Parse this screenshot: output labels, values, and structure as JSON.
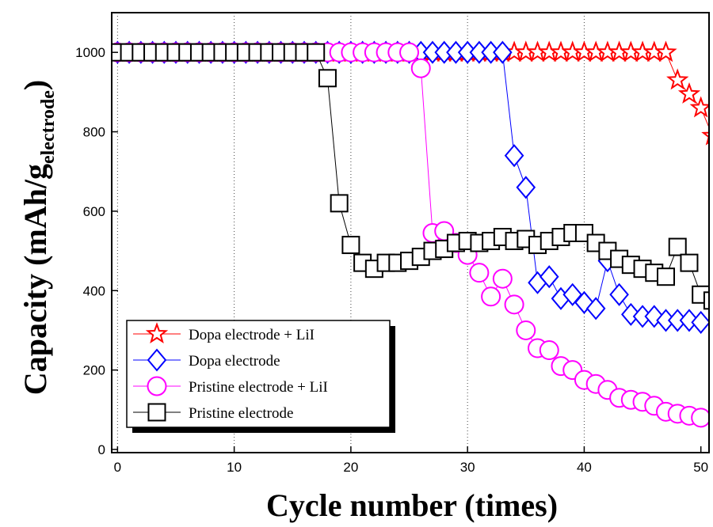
{
  "chart_data": {
    "type": "line",
    "x_label": "Cycle number (times)",
    "y_label": "Capacity (mAh/g",
    "y_label_sub": "electrode",
    "y_label_end": ")",
    "xlim": [
      -0.5,
      50.7
    ],
    "ylim": [
      -8,
      1100
    ],
    "xticks": [
      0,
      10,
      20,
      30,
      40,
      50
    ],
    "yticks": [
      0,
      200,
      400,
      600,
      800,
      1000
    ],
    "grid": "x",
    "legend": "lower left",
    "series": [
      {
        "name": "Dopa electrode + LiI",
        "color": "#ff0000",
        "marker": "star",
        "x": [
          0,
          1,
          2,
          3,
          4,
          5,
          6,
          7,
          8,
          9,
          10,
          11,
          12,
          13,
          14,
          15,
          16,
          17,
          18,
          19,
          20,
          21,
          22,
          23,
          24,
          25,
          26,
          27,
          28,
          29,
          30,
          31,
          32,
          33,
          34,
          35,
          36,
          37,
          38,
          39,
          40,
          41,
          42,
          43,
          44,
          45,
          46,
          47,
          48,
          49,
          50,
          51
        ],
        "values": [
          1000,
          1000,
          1000,
          1000,
          1000,
          1000,
          1000,
          1000,
          1000,
          1000,
          1000,
          1000,
          1000,
          1000,
          1000,
          1000,
          1000,
          1000,
          1000,
          1000,
          1000,
          1000,
          1000,
          1000,
          1000,
          1000,
          1000,
          1000,
          1000,
          1000,
          1000,
          1000,
          1000,
          1000,
          1000,
          1000,
          1000,
          1000,
          1000,
          1000,
          1000,
          1000,
          1000,
          1000,
          1000,
          1000,
          1000,
          1000,
          930,
          895,
          860,
          790
        ]
      },
      {
        "name": "Dopa electrode",
        "color": "#0000ff",
        "marker": "diamond",
        "x": [
          0,
          1,
          2,
          3,
          4,
          5,
          6,
          7,
          8,
          9,
          10,
          11,
          12,
          13,
          14,
          15,
          16,
          17,
          18,
          19,
          20,
          21,
          22,
          23,
          24,
          25,
          26,
          27,
          28,
          29,
          30,
          31,
          32,
          33,
          34,
          35,
          36,
          37,
          38,
          39,
          40,
          41,
          42,
          43,
          44,
          45,
          46,
          47,
          48,
          49,
          50
        ],
        "values": [
          1000,
          1000,
          1000,
          1000,
          1000,
          1000,
          1000,
          1000,
          1000,
          1000,
          1000,
          1000,
          1000,
          1000,
          1000,
          1000,
          1000,
          1000,
          1000,
          1000,
          1000,
          1000,
          1000,
          1000,
          1000,
          1000,
          1000,
          1000,
          1000,
          1000,
          1000,
          1000,
          1000,
          1000,
          740,
          660,
          420,
          435,
          380,
          390,
          370,
          355,
          475,
          390,
          340,
          335,
          335,
          325,
          325,
          325,
          320
        ]
      },
      {
        "name": "Pristine electrode + LiI",
        "color": "#ff00ff",
        "marker": "circle",
        "x": [
          0,
          1,
          2,
          3,
          4,
          5,
          6,
          7,
          8,
          9,
          10,
          11,
          12,
          13,
          14,
          15,
          16,
          17,
          18,
          19,
          20,
          21,
          22,
          23,
          24,
          25,
          26,
          27,
          28,
          29,
          30,
          31,
          32,
          33,
          34,
          35,
          36,
          37,
          38,
          39,
          40,
          41,
          42,
          43,
          44,
          45,
          46,
          47,
          48,
          49,
          50
        ],
        "values": [
          1000,
          1000,
          1000,
          1000,
          1000,
          1000,
          1000,
          1000,
          1000,
          1000,
          1000,
          1000,
          1000,
          1000,
          1000,
          1000,
          1000,
          1000,
          1000,
          1000,
          1000,
          1000,
          1000,
          1000,
          1000,
          1000,
          960,
          545,
          550,
          520,
          490,
          445,
          385,
          430,
          365,
          300,
          255,
          250,
          210,
          200,
          175,
          165,
          150,
          130,
          125,
          120,
          110,
          95,
          90,
          85,
          80
        ]
      },
      {
        "name": "Pristine electrode",
        "color": "#000000",
        "marker": "square",
        "x": [
          0,
          1,
          2,
          3,
          4,
          5,
          6,
          7,
          8,
          9,
          10,
          11,
          12,
          13,
          14,
          15,
          16,
          17,
          18,
          19,
          20,
          21,
          22,
          23,
          24,
          25,
          26,
          27,
          28,
          29,
          30,
          31,
          32,
          33,
          34,
          35,
          36,
          37,
          38,
          39,
          40,
          41,
          42,
          43,
          44,
          45,
          46,
          47,
          48,
          49,
          50,
          51
        ],
        "values": [
          1000,
          1000,
          1000,
          1000,
          1000,
          1000,
          1000,
          1000,
          1000,
          1000,
          1000,
          1000,
          1000,
          1000,
          1000,
          1000,
          1000,
          1000,
          935,
          620,
          515,
          470,
          455,
          470,
          470,
          475,
          485,
          500,
          505,
          520,
          525,
          520,
          525,
          535,
          525,
          530,
          515,
          525,
          535,
          545,
          545,
          520,
          500,
          480,
          465,
          455,
          445,
          435,
          510,
          470,
          390,
          375
        ]
      }
    ]
  }
}
